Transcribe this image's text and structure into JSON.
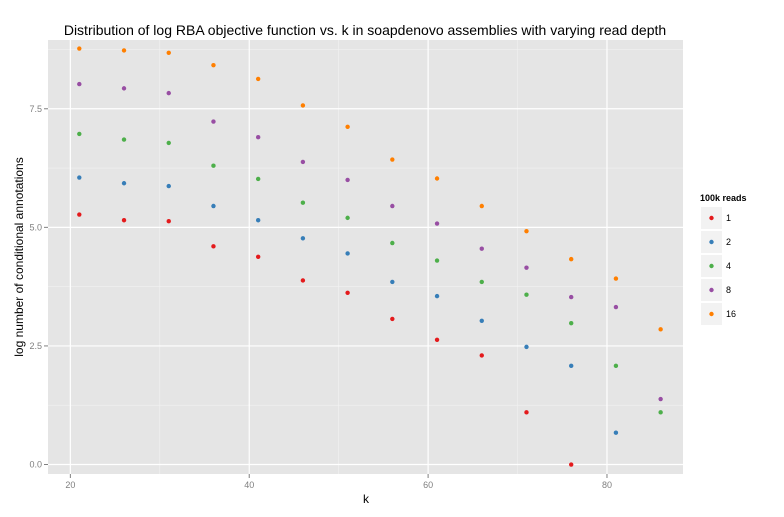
{
  "chart_data": {
    "type": "scatter",
    "title": "Distribution of log RBA objective function vs. k in soapdenovo assemblies with varying read depth",
    "xlabel": "k",
    "ylabel": "log number of conditional annotations",
    "xlim": [
      17.5,
      88.5
    ],
    "ylim": [
      -0.2,
      8.95
    ],
    "x_ticks": [
      20,
      40,
      60,
      80
    ],
    "y_ticks": [
      0.0,
      2.5,
      5.0,
      7.5
    ],
    "x_tick_labels": [
      "20",
      "40",
      "60",
      "80"
    ],
    "y_tick_labels": [
      "0.0",
      "2.5",
      "5.0",
      "7.5"
    ],
    "grid": true,
    "background": "#e5e5e5",
    "legend": {
      "title": "100k reads",
      "position": "right"
    },
    "series": [
      {
        "name": "1",
        "color": "#e41a1c",
        "points": [
          [
            21,
            5.27
          ],
          [
            26,
            5.15
          ],
          [
            31,
            5.13
          ],
          [
            36,
            4.6
          ],
          [
            41,
            4.38
          ],
          [
            46,
            3.88
          ],
          [
            51,
            3.62
          ],
          [
            56,
            3.07
          ],
          [
            61,
            2.63
          ],
          [
            66,
            2.3
          ],
          [
            71,
            1.1
          ],
          [
            76,
            0.0
          ]
        ]
      },
      {
        "name": "2",
        "color": "#377eb8",
        "points": [
          [
            21,
            6.05
          ],
          [
            26,
            5.93
          ],
          [
            31,
            5.87
          ],
          [
            36,
            5.45
          ],
          [
            41,
            5.15
          ],
          [
            46,
            4.77
          ],
          [
            51,
            4.45
          ],
          [
            56,
            3.85
          ],
          [
            61,
            3.55
          ],
          [
            66,
            3.03
          ],
          [
            71,
            2.48
          ],
          [
            76,
            2.08
          ],
          [
            81,
            0.67
          ]
        ]
      },
      {
        "name": "4",
        "color": "#4daf4a",
        "points": [
          [
            21,
            6.97
          ],
          [
            26,
            6.85
          ],
          [
            31,
            6.78
          ],
          [
            36,
            6.3
          ],
          [
            41,
            6.02
          ],
          [
            46,
            5.52
          ],
          [
            51,
            5.2
          ],
          [
            56,
            4.67
          ],
          [
            61,
            4.3
          ],
          [
            66,
            3.85
          ],
          [
            71,
            3.58
          ],
          [
            76,
            2.98
          ],
          [
            81,
            2.08
          ],
          [
            86,
            1.1
          ]
        ]
      },
      {
        "name": "8",
        "color": "#984ea3",
        "points": [
          [
            21,
            8.02
          ],
          [
            26,
            7.93
          ],
          [
            31,
            7.83
          ],
          [
            36,
            7.23
          ],
          [
            41,
            6.9
          ],
          [
            46,
            6.38
          ],
          [
            51,
            6.0
          ],
          [
            56,
            5.45
          ],
          [
            61,
            5.08
          ],
          [
            66,
            4.55
          ],
          [
            71,
            4.15
          ],
          [
            76,
            3.53
          ],
          [
            81,
            3.32
          ],
          [
            86,
            1.38
          ]
        ]
      },
      {
        "name": "16",
        "color": "#ff7f00",
        "points": [
          [
            21,
            8.77
          ],
          [
            26,
            8.73
          ],
          [
            31,
            8.68
          ],
          [
            36,
            8.42
          ],
          [
            41,
            8.13
          ],
          [
            46,
            7.57
          ],
          [
            51,
            7.12
          ],
          [
            56,
            6.43
          ],
          [
            61,
            6.03
          ],
          [
            66,
            5.45
          ],
          [
            71,
            4.92
          ],
          [
            76,
            4.33
          ],
          [
            81,
            3.92
          ],
          [
            86,
            2.85
          ]
        ]
      }
    ]
  }
}
